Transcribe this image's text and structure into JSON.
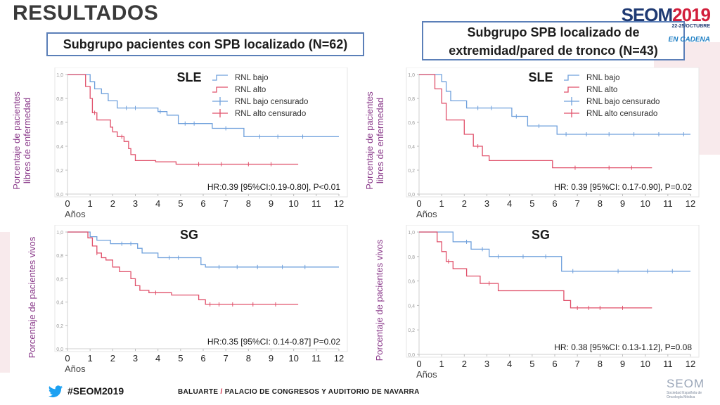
{
  "page": {
    "title": "RESULTADOS",
    "left_header": "Subgrupo pacientes con SPB localizado (N=62)",
    "right_header_line1": "Subgrupo SPB localizado de",
    "right_header_line2": "extremidad/pared de tronco (N=43)"
  },
  "logo": {
    "name": "SEOM",
    "year": "2019",
    "dates": "22-25/OCTUBRE",
    "tagline": "EN CADENA"
  },
  "footer": {
    "hashtag": "#SEOM2019",
    "venue_a": "BALUARTE",
    "venue_slash": "/",
    "venue_b": "PALACIO DE CONGRESOS Y AUDITORIO DE NAVARRA",
    "org_name": "SEOM",
    "org_full": "Sociedad Española de Oncología Médica"
  },
  "colors": {
    "bajo": "#6fa0dc",
    "alto": "#e0506a",
    "border": "#5b7fb8",
    "accent": "#d21f3c"
  },
  "chart_data": [
    {
      "id": "sle-left",
      "type": "line",
      "subtype": "kaplan-meier",
      "panel_title": "SLE",
      "ylabel_line1": "Porcentaje de pacientes",
      "ylabel_line2": "libres de enfermedad",
      "xlabel": "Años",
      "x_ticks": [
        "0",
        "1",
        "2",
        "3",
        "4",
        "5",
        "6",
        "7",
        "8",
        "9",
        "10",
        "11",
        "12"
      ],
      "y_ticks": [
        "0,0",
        "0,2",
        "0,4",
        "0,6",
        "0,8",
        "1,0"
      ],
      "xlim": [
        0,
        12
      ],
      "ylim": [
        0,
        1
      ],
      "legend": [
        "RNL bajo",
        "RNL alto",
        "RNL bajo censurado",
        "RNL alto censurado"
      ],
      "legend_position": "top-right",
      "annotation": "HR:0.39 [95%CI:0.19-0.80], P<0.01",
      "series": [
        {
          "name": "RNL bajo",
          "color_key": "bajo",
          "steps": [
            [
              0,
              1.0
            ],
            [
              1.0,
              0.94
            ],
            [
              1.2,
              0.88
            ],
            [
              1.5,
              0.84
            ],
            [
              1.8,
              0.78
            ],
            [
              2.2,
              0.72
            ],
            [
              4.0,
              0.69
            ],
            [
              4.4,
              0.66
            ],
            [
              4.9,
              0.59
            ],
            [
              6.4,
              0.55
            ],
            [
              7.8,
              0.48
            ],
            [
              12,
              0.48
            ]
          ],
          "censored": [
            [
              2.6,
              0.72
            ],
            [
              3.0,
              0.72
            ],
            [
              4.1,
              0.69
            ],
            [
              5.2,
              0.59
            ],
            [
              5.6,
              0.59
            ],
            [
              7.0,
              0.55
            ],
            [
              8.5,
              0.48
            ],
            [
              9.3,
              0.48
            ],
            [
              10.4,
              0.48
            ]
          ]
        },
        {
          "name": "RNL alto",
          "color_key": "alto",
          "steps": [
            [
              0,
              1.0
            ],
            [
              0.8,
              0.9
            ],
            [
              1.0,
              0.8
            ],
            [
              1.1,
              0.68
            ],
            [
              1.3,
              0.62
            ],
            [
              1.9,
              0.56
            ],
            [
              2.0,
              0.52
            ],
            [
              2.2,
              0.48
            ],
            [
              2.5,
              0.44
            ],
            [
              2.7,
              0.38
            ],
            [
              2.8,
              0.33
            ],
            [
              3.0,
              0.28
            ],
            [
              3.9,
              0.27
            ],
            [
              4.8,
              0.25
            ],
            [
              10.2,
              0.25
            ]
          ],
          "censored": [
            [
              1.2,
              0.68
            ],
            [
              2.4,
              0.48
            ],
            [
              5.8,
              0.25
            ],
            [
              6.8,
              0.25
            ],
            [
              8.0,
              0.25
            ],
            [
              9.0,
              0.25
            ]
          ]
        }
      ]
    },
    {
      "id": "sle-right",
      "type": "line",
      "subtype": "kaplan-meier",
      "panel_title": "SLE",
      "ylabel_line1": "Porcentaje de pacientes",
      "ylabel_line2": "libres de enfermedad",
      "xlabel": "Años",
      "x_ticks": [
        "0",
        "1",
        "2",
        "3",
        "4",
        "5",
        "6",
        "7",
        "8",
        "9",
        "10",
        "11",
        "12"
      ],
      "y_ticks": [
        "0,0",
        "0,2",
        "0,4",
        "0,6",
        "0,8",
        "1,0"
      ],
      "xlim": [
        0,
        12
      ],
      "ylim": [
        0,
        1
      ],
      "legend": [
        "RNL bajo",
        "RNL alto",
        "RNL bajo censurado",
        "RNL alto censurado"
      ],
      "legend_position": "top-right",
      "annotation": "HR: 0.39 [95%CI: 0.17-0.90], P=0.02",
      "series": [
        {
          "name": "RNL bajo",
          "color_key": "bajo",
          "steps": [
            [
              0,
              1.0
            ],
            [
              1.0,
              0.94
            ],
            [
              1.2,
              0.86
            ],
            [
              1.4,
              0.78
            ],
            [
              2.1,
              0.72
            ],
            [
              4.1,
              0.65
            ],
            [
              4.8,
              0.57
            ],
            [
              6.1,
              0.5
            ],
            [
              12,
              0.5
            ]
          ],
          "censored": [
            [
              2.6,
              0.72
            ],
            [
              3.2,
              0.72
            ],
            [
              4.3,
              0.65
            ],
            [
              5.3,
              0.57
            ],
            [
              6.5,
              0.5
            ],
            [
              7.4,
              0.5
            ],
            [
              8.4,
              0.5
            ],
            [
              9.5,
              0.5
            ],
            [
              10.6,
              0.5
            ],
            [
              11.7,
              0.5
            ]
          ]
        },
        {
          "name": "RNL alto",
          "color_key": "alto",
          "steps": [
            [
              0,
              1.0
            ],
            [
              0.7,
              0.88
            ],
            [
              1.0,
              0.76
            ],
            [
              1.2,
              0.62
            ],
            [
              2.0,
              0.5
            ],
            [
              2.4,
              0.4
            ],
            [
              2.8,
              0.32
            ],
            [
              3.1,
              0.28
            ],
            [
              5.9,
              0.22
            ],
            [
              10.3,
              0.22
            ]
          ],
          "censored": [
            [
              2.6,
              0.4
            ],
            [
              6.9,
              0.22
            ],
            [
              8.4,
              0.22
            ],
            [
              9.4,
              0.22
            ]
          ]
        }
      ]
    },
    {
      "id": "sg-left",
      "type": "line",
      "subtype": "kaplan-meier",
      "panel_title": "SG",
      "ylabel_line1": "Porcentaje de pacientes vivos",
      "ylabel_line2": "",
      "xlabel": "Años",
      "x_ticks": [
        "0",
        "1",
        "2",
        "3",
        "4",
        "5",
        "6",
        "7",
        "8",
        "9",
        "10",
        "11",
        "12"
      ],
      "y_ticks": [
        "0,0",
        "0,2",
        "0,4",
        "0,6",
        "0,8",
        "1,0"
      ],
      "xlim": [
        0,
        12
      ],
      "ylim": [
        0,
        1
      ],
      "annotation": "HR:0.35 [95%CI: 0.14-0.87] P=0.02",
      "series": [
        {
          "name": "RNL bajo",
          "color_key": "bajo",
          "steps": [
            [
              0,
              1.0
            ],
            [
              1.0,
              0.96
            ],
            [
              1.3,
              0.93
            ],
            [
              1.9,
              0.9
            ],
            [
              3.1,
              0.86
            ],
            [
              3.3,
              0.82
            ],
            [
              4.0,
              0.78
            ],
            [
              5.9,
              0.72
            ],
            [
              6.1,
              0.7
            ],
            [
              12,
              0.7
            ]
          ],
          "censored": [
            [
              2.4,
              0.9
            ],
            [
              2.8,
              0.9
            ],
            [
              4.5,
              0.78
            ],
            [
              4.9,
              0.78
            ],
            [
              6.7,
              0.7
            ],
            [
              7.5,
              0.7
            ],
            [
              8.4,
              0.7
            ],
            [
              9.5,
              0.7
            ],
            [
              10.5,
              0.7
            ]
          ]
        },
        {
          "name": "RNL alto",
          "color_key": "alto",
          "steps": [
            [
              0,
              1.0
            ],
            [
              0.9,
              0.95
            ],
            [
              1.1,
              0.88
            ],
            [
              1.3,
              0.82
            ],
            [
              1.5,
              0.78
            ],
            [
              1.7,
              0.76
            ],
            [
              2.0,
              0.7
            ],
            [
              2.3,
              0.66
            ],
            [
              2.8,
              0.6
            ],
            [
              3.0,
              0.54
            ],
            [
              3.2,
              0.5
            ],
            [
              3.6,
              0.48
            ],
            [
              4.6,
              0.46
            ],
            [
              5.8,
              0.42
            ],
            [
              6.1,
              0.38
            ],
            [
              10.2,
              0.38
            ]
          ],
          "censored": [
            [
              1.3,
              0.82
            ],
            [
              3.9,
              0.48
            ],
            [
              6.3,
              0.38
            ],
            [
              6.7,
              0.38
            ],
            [
              7.3,
              0.38
            ],
            [
              8.2,
              0.38
            ],
            [
              9.2,
              0.38
            ]
          ]
        }
      ]
    },
    {
      "id": "sg-right",
      "type": "line",
      "subtype": "kaplan-meier",
      "panel_title": "SG",
      "ylabel_line1": "Porcentaje de pacientes vivos",
      "ylabel_line2": "",
      "xlabel": "Años",
      "x_ticks": [
        "0",
        "1",
        "2",
        "3",
        "4",
        "5",
        "6",
        "7",
        "8",
        "9",
        "10",
        "11",
        "12"
      ],
      "y_ticks": [
        "0,0",
        "0,2",
        "0,4",
        "0,6",
        "0,8",
        "1,0"
      ],
      "xlim": [
        0,
        12
      ],
      "ylim": [
        0,
        1
      ],
      "annotation": "HR: 0.38 [95%CI: 0.13-1.12], P=0.08",
      "series": [
        {
          "name": "RNL bajo",
          "color_key": "bajo",
          "steps": [
            [
              0,
              1.0
            ],
            [
              1.5,
              0.92
            ],
            [
              2.3,
              0.86
            ],
            [
              3.1,
              0.8
            ],
            [
              6.3,
              0.68
            ],
            [
              12,
              0.68
            ]
          ],
          "censored": [
            [
              2.1,
              0.92
            ],
            [
              2.8,
              0.86
            ],
            [
              3.5,
              0.8
            ],
            [
              4.6,
              0.8
            ],
            [
              5.6,
              0.8
            ],
            [
              6.8,
              0.68
            ],
            [
              8.8,
              0.68
            ],
            [
              10.1,
              0.68
            ],
            [
              11.2,
              0.68
            ]
          ]
        },
        {
          "name": "RNL alto",
          "color_key": "alto",
          "steps": [
            [
              0,
              1.0
            ],
            [
              0.8,
              0.92
            ],
            [
              1.0,
              0.84
            ],
            [
              1.2,
              0.76
            ],
            [
              1.5,
              0.7
            ],
            [
              2.1,
              0.64
            ],
            [
              2.7,
              0.58
            ],
            [
              3.5,
              0.52
            ],
            [
              6.4,
              0.44
            ],
            [
              6.7,
              0.38
            ],
            [
              10.3,
              0.38
            ]
          ],
          "censored": [
            [
              1.3,
              0.76
            ],
            [
              3.1,
              0.58
            ],
            [
              7.0,
              0.38
            ],
            [
              7.5,
              0.38
            ],
            [
              8.0,
              0.38
            ],
            [
              9.0,
              0.38
            ]
          ]
        }
      ]
    }
  ]
}
